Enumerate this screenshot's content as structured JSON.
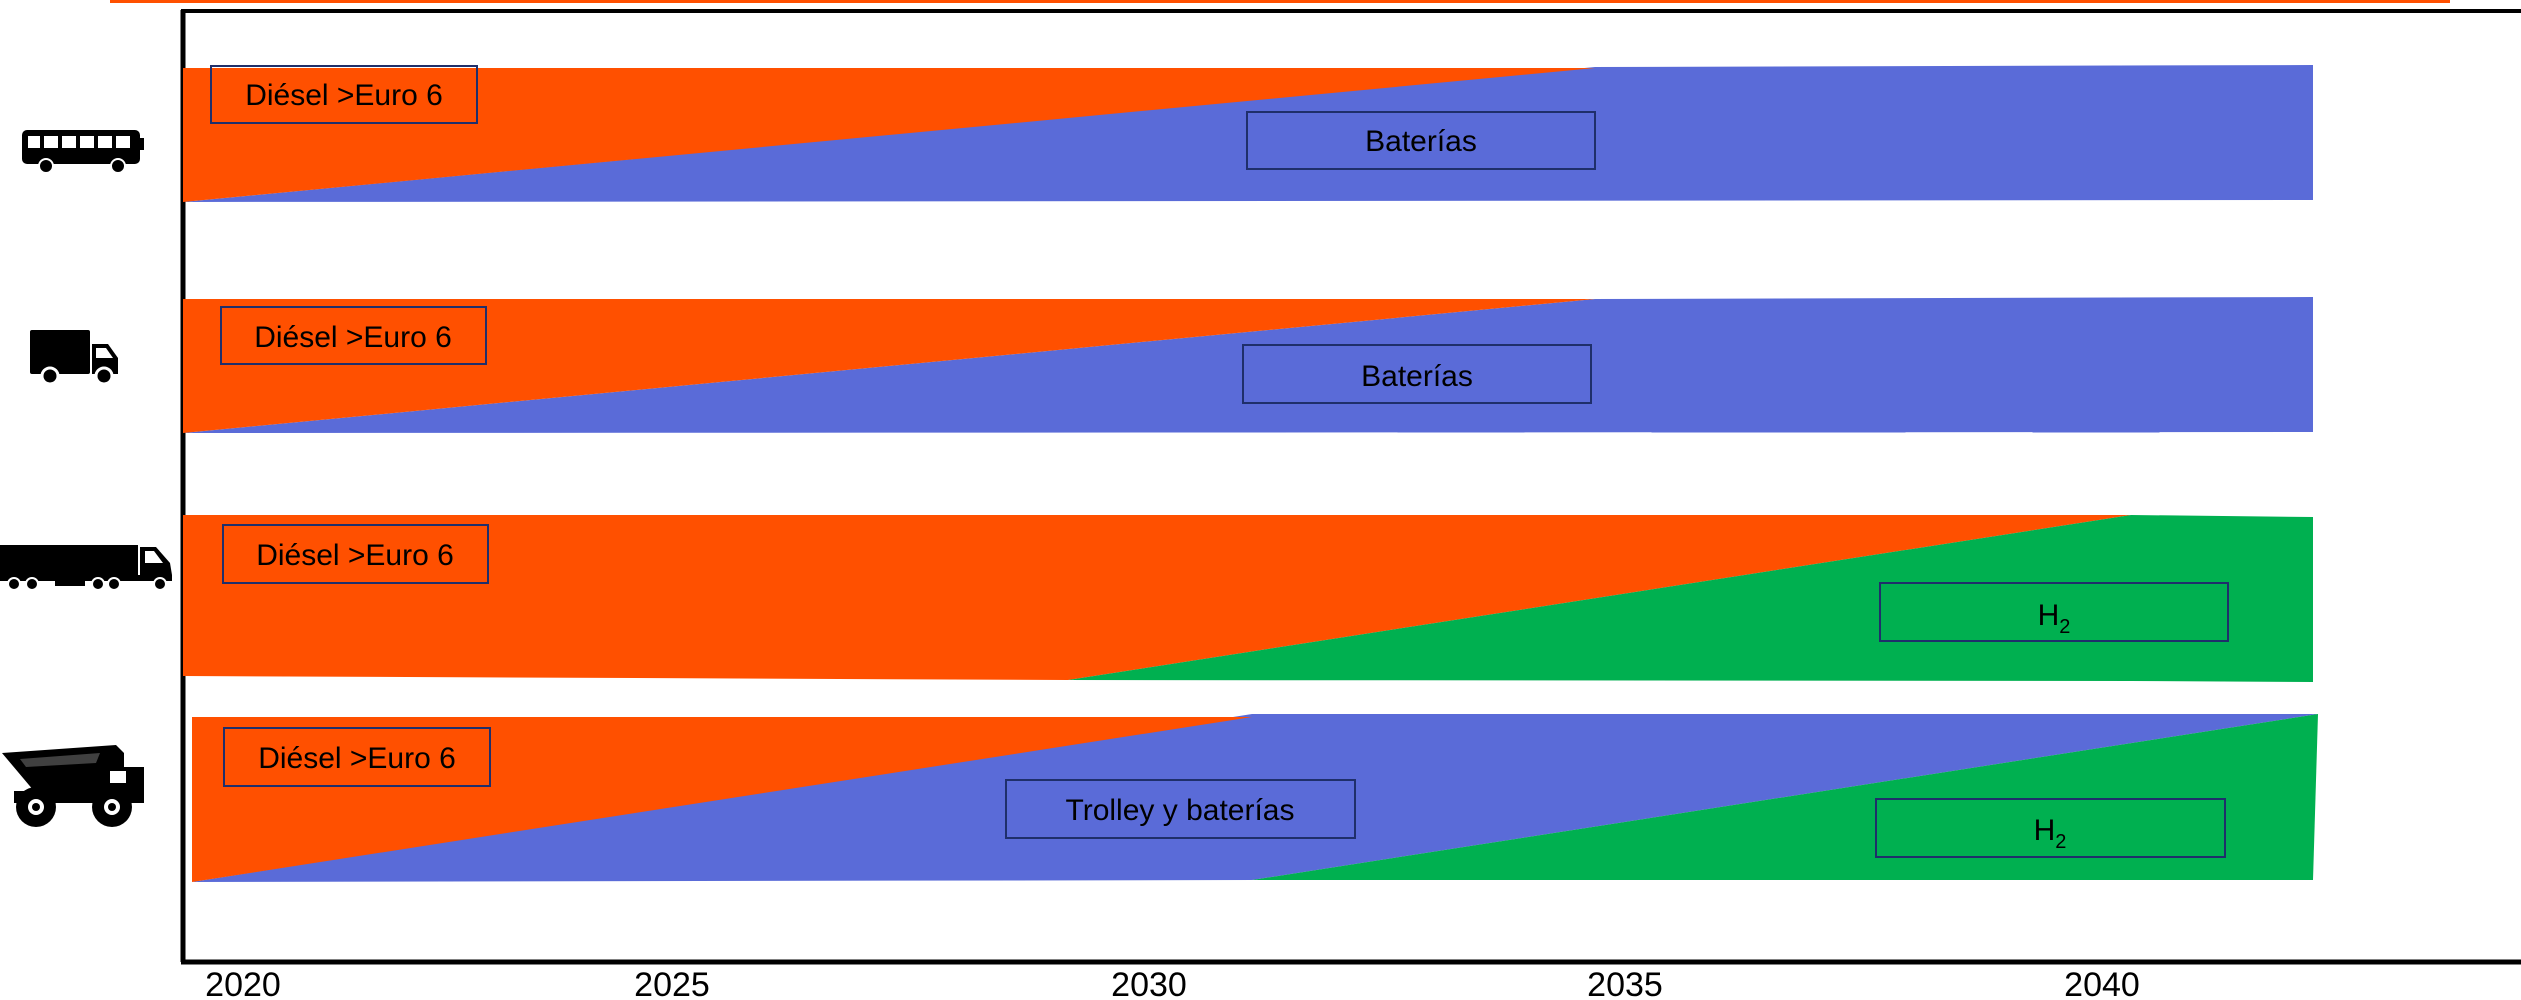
{
  "colors": {
    "diesel": "#FF5000",
    "batteries": "#5A6BD8",
    "hydrogen": "#00B050",
    "axis": "#000000",
    "label_border": "#1F2F6B",
    "top_rule": "#FF5000"
  },
  "axis": {
    "x_ticks": [
      "2020",
      "2025",
      "2030",
      "2035",
      "2040"
    ]
  },
  "rows": [
    {
      "vehicle_icon": "bus-icon",
      "labels": {
        "diesel": "Diésel >Euro 6",
        "batteries": "Baterías"
      }
    },
    {
      "vehicle_icon": "delivery-truck-icon",
      "labels": {
        "diesel": "Diésel >Euro 6",
        "batteries": "Baterías"
      }
    },
    {
      "vehicle_icon": "semi-trailer-truck-icon",
      "labels": {
        "diesel": "Diésel >Euro 6",
        "hydrogen_main": "H",
        "hydrogen_sub": "2"
      }
    },
    {
      "vehicle_icon": "mining-dump-truck-icon",
      "labels": {
        "diesel": "Diésel >Euro 6",
        "trolley": "Trolley y baterías",
        "hydrogen_main": "H",
        "hydrogen_sub": "2"
      }
    }
  ]
}
